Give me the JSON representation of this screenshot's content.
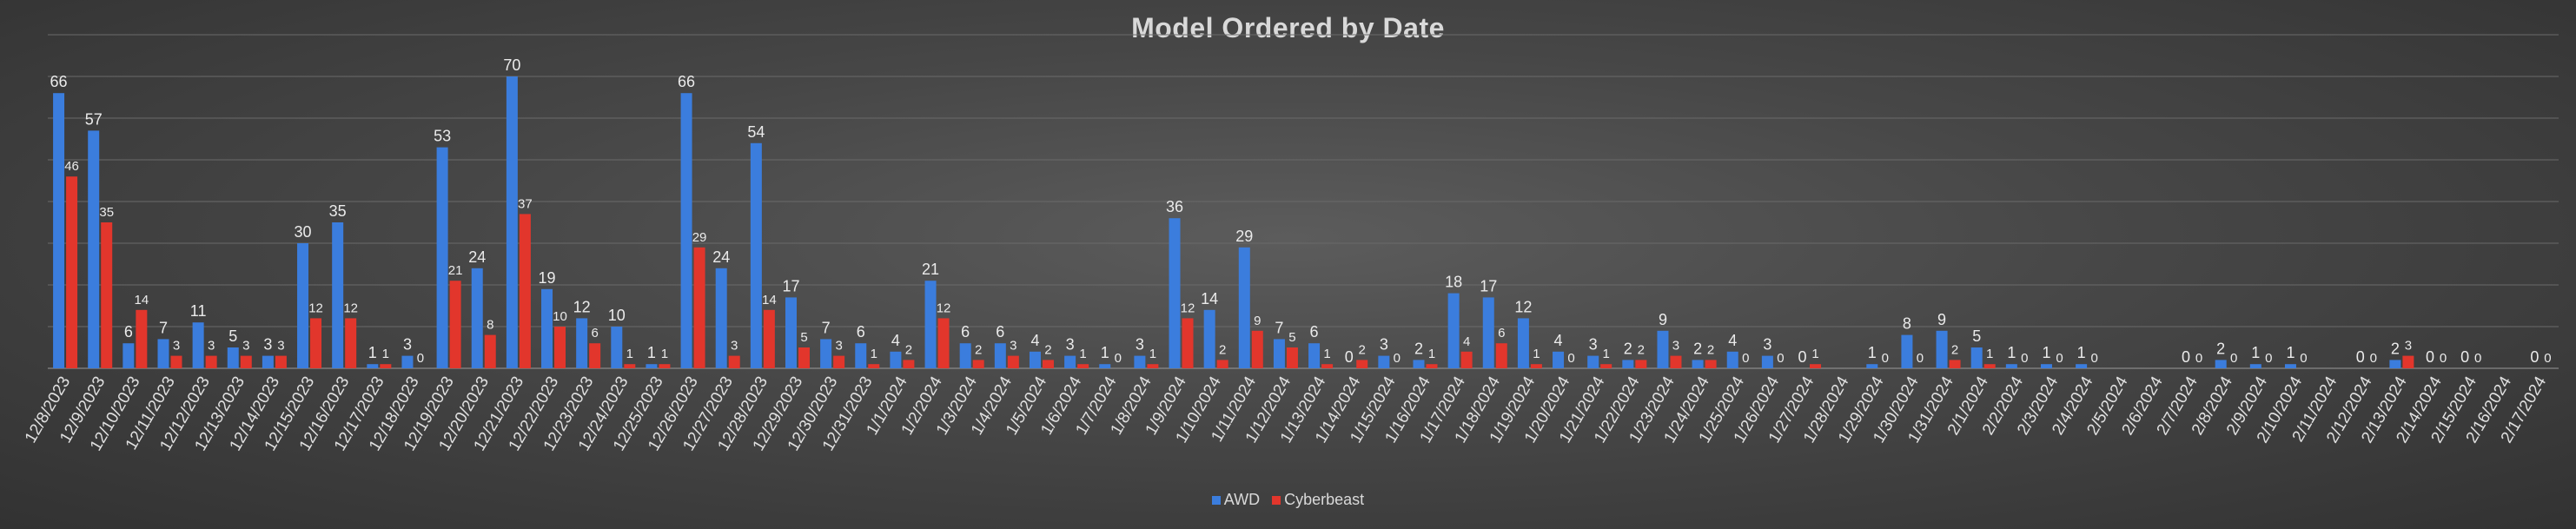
{
  "chart_data": {
    "type": "bar",
    "title": "Model Ordered by Date",
    "xlabel": "",
    "ylabel": "",
    "ylim": [
      0,
      80
    ],
    "grid": true,
    "legend_position": "bottom",
    "categories": [
      "12/8/2023",
      "12/9/2023",
      "12/10/2023",
      "12/11/2023",
      "12/12/2023",
      "12/13/2023",
      "12/14/2023",
      "12/15/2023",
      "12/16/2023",
      "12/17/2023",
      "12/18/2023",
      "12/19/2023",
      "12/20/2023",
      "12/21/2023",
      "12/22/2023",
      "12/23/2023",
      "12/24/2023",
      "12/25/2023",
      "12/26/2023",
      "12/27/2023",
      "12/28/2023",
      "12/29/2023",
      "12/30/2023",
      "12/31/2023",
      "1/1/2024",
      "1/2/2024",
      "1/3/2024",
      "1/4/2024",
      "1/5/2024",
      "1/6/2024",
      "1/7/2024",
      "1/8/2024",
      "1/9/2024",
      "1/10/2024",
      "1/11/2024",
      "1/12/2024",
      "1/13/2024",
      "1/14/2024",
      "1/15/2024",
      "1/16/2024",
      "1/17/2024",
      "1/18/2024",
      "1/19/2024",
      "1/20/2024",
      "1/21/2024",
      "1/22/2024",
      "1/23/2024",
      "1/24/2024",
      "1/25/2024",
      "1/26/2024",
      "1/27/2024",
      "1/28/2024",
      "1/29/2024",
      "1/30/2024",
      "1/31/2024",
      "2/1/2024",
      "2/2/2024",
      "2/3/2024",
      "2/4/2024",
      "2/5/2024",
      "2/6/2024",
      "2/7/2024",
      "2/8/2024",
      "2/9/2024",
      "2/10/2024",
      "2/11/2024",
      "2/12/2024",
      "2/13/2024",
      "2/14/2024",
      "2/15/2024",
      "2/16/2024",
      "2/17/2024"
    ],
    "series": [
      {
        "name": "AWD",
        "color": "#3b7ddd",
        "values": [
          66,
          57,
          6,
          7,
          11,
          5,
          3,
          30,
          35,
          1,
          3,
          53,
          24,
          70,
          19,
          12,
          10,
          1,
          66,
          24,
          54,
          17,
          7,
          6,
          4,
          21,
          6,
          6,
          4,
          3,
          1,
          3,
          36,
          14,
          29,
          7,
          6,
          0,
          3,
          2,
          18,
          17,
          12,
          4,
          3,
          2,
          9,
          2,
          4,
          3,
          0,
          null,
          1,
          8,
          9,
          5,
          1,
          1,
          1,
          null,
          null,
          0,
          2,
          1,
          1,
          null,
          0,
          2,
          0,
          0,
          null,
          0
        ]
      },
      {
        "name": "Cyberbeast",
        "color": "#e2362c",
        "values": [
          46,
          35,
          14,
          3,
          3,
          3,
          3,
          12,
          12,
          1,
          0,
          21,
          8,
          37,
          10,
          6,
          1,
          1,
          29,
          3,
          14,
          5,
          3,
          1,
          2,
          12,
          2,
          3,
          2,
          1,
          0,
          1,
          12,
          2,
          9,
          5,
          1,
          2,
          0,
          1,
          4,
          6,
          1,
          0,
          1,
          2,
          3,
          2,
          0,
          0,
          1,
          null,
          0,
          0,
          2,
          1,
          0,
          0,
          0,
          null,
          null,
          0,
          0,
          0,
          0,
          null,
          0,
          3,
          0,
          0,
          null,
          0
        ]
      }
    ]
  }
}
